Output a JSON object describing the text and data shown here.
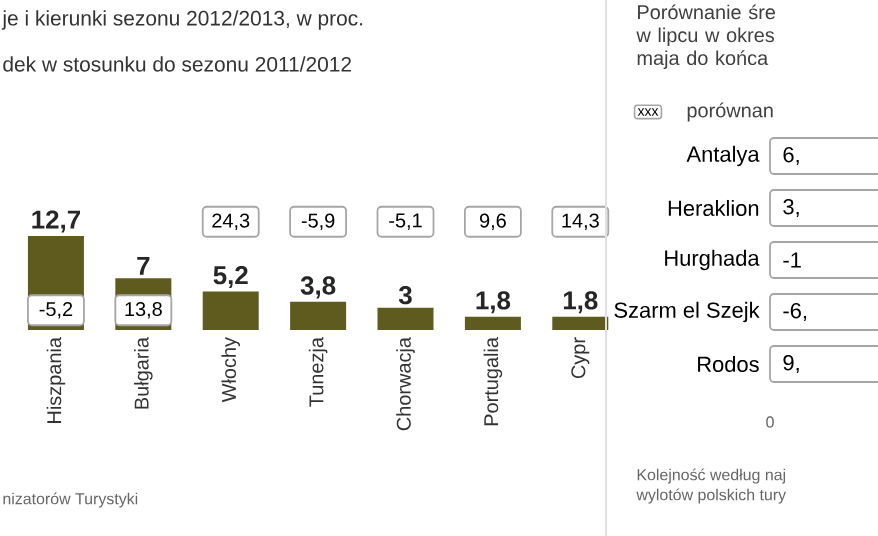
{
  "chart_data": [
    {
      "type": "bar",
      "title": "je i kierunki sezonu 2012/2013, w proc.",
      "subtitle": "dek w stosunku do sezonu 2011/2012",
      "categories": [
        "Hiszpania",
        "Bułgaria",
        "Włochy",
        "Tunezja",
        "Chorwacja",
        "Portugalia",
        "Cypr"
      ],
      "values": [
        12.7,
        7,
        5.2,
        3.8,
        3,
        1.8,
        1.8
      ],
      "value_labels": [
        "12,7",
        "7",
        "5,2",
        "3,8",
        "3",
        "1,8",
        "1,8"
      ],
      "color": "#5f5b1f",
      "annotations": [
        {
          "text": "-5,2",
          "x": "Hiszpania"
        },
        {
          "text": "13,8",
          "x": "Bułgaria"
        },
        {
          "text": "24,3",
          "x": "Włochy"
        },
        {
          "text": "-5,9",
          "x": "Tunezja"
        },
        {
          "text": "-5,1",
          "x": "Chorwacja"
        },
        {
          "text": "9,6",
          "x": "Portugalia"
        },
        {
          "text": "14,3",
          "x": "Cypr"
        },
        "nizatorów Turystyki"
      ]
    },
    {
      "type": "other",
      "title": "Porównanie śre w lipcu w okres maja do końca",
      "categories": [
        "Antalya",
        "Heraklion",
        "Hurghada",
        "Szarm el Szejk",
        "Rodos"
      ],
      "value_labels": [
        "6,",
        "3,",
        "-1",
        "-6,",
        "9,"
      ],
      "legend_title": "porównan",
      "annotations": [
        "xxx",
        "0",
        "Kolejność według naj",
        "wylotów polskich tury"
      ]
    }
  ]
}
